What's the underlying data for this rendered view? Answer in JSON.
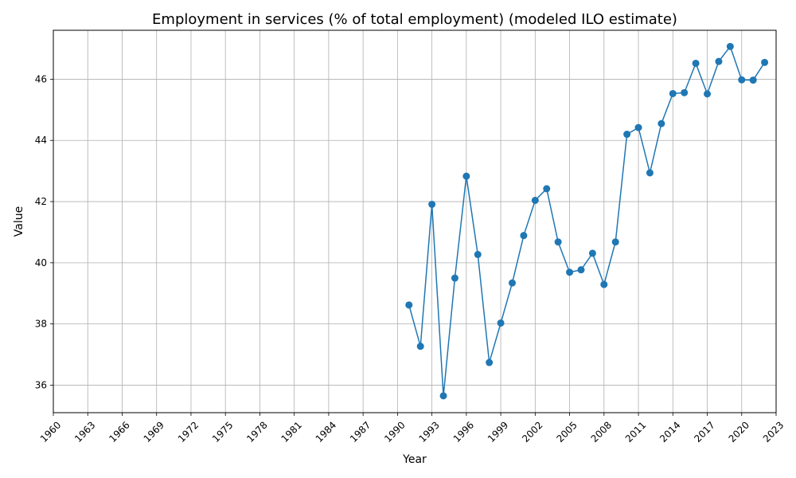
{
  "chart_data": {
    "type": "line",
    "title": "Employment in services (% of total employment) (modeled ILO estimate)",
    "xlabel": "Year",
    "ylabel": "Value",
    "xlim": [
      1960,
      2023
    ],
    "ylim": [
      35.1,
      47.6
    ],
    "xticks": [
      1960,
      1963,
      1966,
      1969,
      1972,
      1975,
      1978,
      1981,
      1984,
      1987,
      1990,
      1993,
      1996,
      1999,
      2002,
      2005,
      2008,
      2011,
      2014,
      2017,
      2020,
      2023
    ],
    "yticks": [
      36,
      38,
      40,
      42,
      44,
      46
    ],
    "grid": true,
    "line_color": "#1f77b4",
    "marker": "circle",
    "series": [
      {
        "x": [
          1991,
          1992,
          1993,
          1994,
          1995,
          1996,
          1997,
          1998,
          1999,
          2000,
          2001,
          2002,
          2003,
          2004,
          2005,
          2006,
          2007,
          2008,
          2009,
          2010,
          2011,
          2012,
          2013,
          2014,
          2015,
          2016,
          2017,
          2018,
          2019,
          2020,
          2021,
          2022
        ],
        "values": [
          38.62,
          37.27,
          41.91,
          35.65,
          39.5,
          42.83,
          40.27,
          36.74,
          38.03,
          39.34,
          40.89,
          42.04,
          42.42,
          40.68,
          39.69,
          39.77,
          40.31,
          39.29,
          40.68,
          44.2,
          44.42,
          42.94,
          44.55,
          45.53,
          45.56,
          46.52,
          45.52,
          46.58,
          47.07,
          45.98,
          45.97,
          46.55
        ]
      }
    ]
  }
}
